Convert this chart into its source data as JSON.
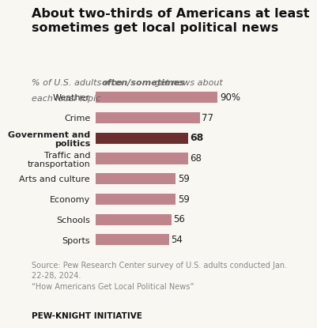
{
  "title": "About two-thirds of Americans at least\nsometimes get local political news",
  "subtitle_normal": "% of U.S. adults who ",
  "subtitle_bold": "often/sometimes",
  "subtitle_end": " get news about\neach local topic",
  "categories": [
    "Weather",
    "Crime",
    "Government and\npolitics",
    "Traffic and\ntransportation",
    "Arts and culture",
    "Economy",
    "Schools",
    "Sports"
  ],
  "values": [
    90,
    77,
    68,
    68,
    59,
    59,
    56,
    54
  ],
  "bar_colors": [
    "#c0848c",
    "#c0848c",
    "#6b2d2d",
    "#c0848c",
    "#c0848c",
    "#c0848c",
    "#c0848c",
    "#c0848c"
  ],
  "highlight_index": 2,
  "value_labels": [
    "90%",
    "77",
    "68",
    "68",
    "59",
    "59",
    "56",
    "54"
  ],
  "label_bold": [
    false,
    false,
    true,
    false,
    false,
    false,
    false,
    false
  ],
  "xlim": [
    0,
    105
  ],
  "source_text": "Source: Pew Research Center survey of U.S. adults conducted Jan.\n22-28, 2024.\n“How Americans Get Local Political News”",
  "footer_text": "PEW-KNIGHT INITIATIVE",
  "bg_color": "#f9f7f2",
  "title_fontsize": 11.5,
  "subtitle_fontsize": 8,
  "label_fontsize": 8,
  "value_fontsize": 8.5,
  "source_fontsize": 7,
  "footer_fontsize": 7.5
}
